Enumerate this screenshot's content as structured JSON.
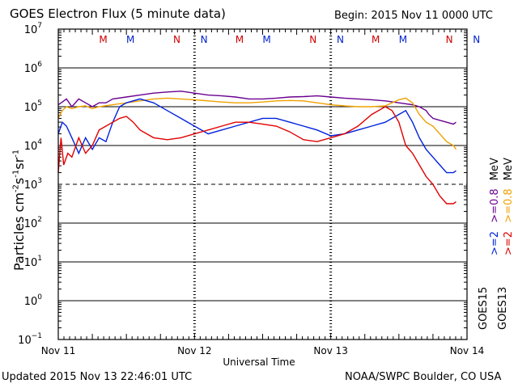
{
  "header": {
    "title": "GOES Electron Flux (5 minute data)",
    "begin": "Begin: 2015 Nov 11 0000 UTC"
  },
  "footer": {
    "updated": "Updated 2015 Nov 13 22:46:01 UTC",
    "credit": "NOAA/SWPC Boulder, CO USA"
  },
  "colors": {
    "goes13_2mev": "#e00000",
    "goes15_2mev": "#0022dd",
    "goes13_08mev": "#f0a000",
    "goes15_08mev": "#6a0090",
    "marker_m": "#cc0000",
    "marker_n_red": "#cc0000",
    "marker_n_blue": "#0022cc"
  },
  "chart_data": {
    "type": "line",
    "title": "GOES Electron Flux (5 minute data)",
    "xlabel": "Universal Time",
    "ylabel": "Particles cm-2 s-1 sr-1",
    "yscale": "log",
    "ylim_exp": [
      -1,
      7
    ],
    "xlim_days": [
      0,
      3
    ],
    "x_ticks": [
      "Nov 11",
      "Nov 12",
      "Nov 13",
      "Nov 14"
    ],
    "y_tick_base": "10",
    "y_tick_exponents": [
      "7",
      "6",
      "5",
      "4",
      "3",
      "2",
      "1",
      "0",
      "−1"
    ],
    "threshold_exp": 3,
    "legend_labels": {
      "goes13_2mev": ">=2",
      "goes13_08mev": ">=0.8",
      "goes13_mev": "MeV",
      "goes15_2mev": ">=2",
      "goes15_08mev": ">=0.8",
      "goes15_mev": "MeV",
      "goes15": "GOES15",
      "goes13": "GOES13"
    },
    "markers": [
      {
        "label": "M",
        "day": 0.33,
        "color": "#cc0000"
      },
      {
        "label": "M",
        "day": 0.53,
        "color": "#0022cc"
      },
      {
        "label": "N",
        "day": 0.87,
        "color": "#cc0000"
      },
      {
        "label": "N",
        "day": 1.07,
        "color": "#0022cc"
      },
      {
        "label": "M",
        "day": 1.33,
        "color": "#cc0000"
      },
      {
        "label": "M",
        "day": 1.53,
        "color": "#0022cc"
      },
      {
        "label": "N",
        "day": 1.87,
        "color": "#cc0000"
      },
      {
        "label": "N",
        "day": 2.07,
        "color": "#0022cc"
      },
      {
        "label": "M",
        "day": 2.33,
        "color": "#cc0000"
      },
      {
        "label": "M",
        "day": 2.53,
        "color": "#0022cc"
      },
      {
        "label": "N",
        "day": 2.87,
        "color": "#cc0000"
      },
      {
        "label": "N",
        "day": 3.07,
        "color": "#0022cc"
      }
    ],
    "series": [
      {
        "name": "GOES15 >=0.8 MeV",
        "color": "#6a0090",
        "x": [
          0.0,
          0.03,
          0.06,
          0.1,
          0.15,
          0.2,
          0.25,
          0.3,
          0.35,
          0.4,
          0.5,
          0.6,
          0.7,
          0.8,
          0.9,
          1.0,
          1.1,
          1.2,
          1.3,
          1.4,
          1.5,
          1.6,
          1.7,
          1.8,
          1.9,
          2.0,
          2.1,
          2.2,
          2.3,
          2.4,
          2.5,
          2.6,
          2.65,
          2.7,
          2.72,
          2.75,
          2.8,
          2.85,
          2.9,
          2.92
        ],
        "y": [
          5.05,
          5.12,
          5.2,
          5.0,
          5.2,
          5.1,
          5.0,
          5.1,
          5.1,
          5.2,
          5.25,
          5.3,
          5.35,
          5.38,
          5.4,
          5.35,
          5.3,
          5.28,
          5.25,
          5.2,
          5.2,
          5.22,
          5.25,
          5.26,
          5.28,
          5.25,
          5.22,
          5.2,
          5.18,
          5.15,
          5.1,
          5.05,
          5.0,
          4.9,
          4.8,
          4.7,
          4.65,
          4.6,
          4.55,
          4.6
        ]
      },
      {
        "name": "GOES13 >=0.8 MeV",
        "color": "#f0a000",
        "x": [
          0.0,
          0.03,
          0.06,
          0.1,
          0.15,
          0.2,
          0.25,
          0.3,
          0.4,
          0.5,
          0.6,
          0.7,
          0.8,
          0.9,
          1.0,
          1.1,
          1.2,
          1.3,
          1.4,
          1.5,
          1.6,
          1.7,
          1.8,
          1.9,
          2.0,
          2.1,
          2.2,
          2.3,
          2.4,
          2.45,
          2.5,
          2.55,
          2.6,
          2.65,
          2.7,
          2.75,
          2.8,
          2.85,
          2.9,
          2.92
        ],
        "y": [
          4.7,
          4.9,
          5.0,
          4.95,
          5.0,
          5.02,
          4.95,
          5.0,
          5.05,
          5.1,
          5.15,
          5.2,
          5.22,
          5.2,
          5.18,
          5.15,
          5.12,
          5.1,
          5.1,
          5.12,
          5.15,
          5.16,
          5.15,
          5.1,
          5.05,
          5.02,
          5.0,
          5.0,
          5.02,
          5.1,
          5.18,
          5.22,
          5.1,
          4.8,
          4.6,
          4.5,
          4.3,
          4.1,
          4.0,
          3.9
        ]
      },
      {
        "name": "GOES15 >=2 MeV",
        "color": "#0022dd",
        "x": [
          0.0,
          0.03,
          0.06,
          0.1,
          0.15,
          0.2,
          0.25,
          0.3,
          0.35,
          0.4,
          0.45,
          0.5,
          0.6,
          0.7,
          0.8,
          0.9,
          1.0,
          1.1,
          1.2,
          1.3,
          1.4,
          1.5,
          1.6,
          1.7,
          1.8,
          1.9,
          2.0,
          2.1,
          2.2,
          2.3,
          2.4,
          2.5,
          2.55,
          2.6,
          2.65,
          2.7,
          2.75,
          2.8,
          2.85,
          2.9,
          2.92
        ],
        "y": [
          4.3,
          4.6,
          4.5,
          4.2,
          3.8,
          4.2,
          3.9,
          4.2,
          4.1,
          4.6,
          5.0,
          5.1,
          5.2,
          5.1,
          4.9,
          4.7,
          4.5,
          4.3,
          4.4,
          4.5,
          4.6,
          4.7,
          4.7,
          4.6,
          4.5,
          4.4,
          4.25,
          4.3,
          4.4,
          4.5,
          4.6,
          4.8,
          4.9,
          4.6,
          4.2,
          3.9,
          3.7,
          3.5,
          3.3,
          3.3,
          3.35
        ]
      },
      {
        "name": "GOES13 >=2 MeV",
        "color": "#e00000",
        "x": [
          0.0,
          0.02,
          0.04,
          0.07,
          0.1,
          0.15,
          0.2,
          0.25,
          0.3,
          0.35,
          0.4,
          0.45,
          0.5,
          0.55,
          0.6,
          0.7,
          0.8,
          0.9,
          1.0,
          1.1,
          1.2,
          1.3,
          1.4,
          1.5,
          1.6,
          1.7,
          1.8,
          1.9,
          2.0,
          2.1,
          2.2,
          2.3,
          2.4,
          2.45,
          2.5,
          2.55,
          2.6,
          2.65,
          2.7,
          2.75,
          2.8,
          2.85,
          2.9,
          2.92
        ],
        "y": [
          3.3,
          4.2,
          3.5,
          3.8,
          3.7,
          4.2,
          3.8,
          4.0,
          4.4,
          4.5,
          4.6,
          4.7,
          4.75,
          4.6,
          4.4,
          4.2,
          4.15,
          4.2,
          4.3,
          4.4,
          4.5,
          4.6,
          4.6,
          4.55,
          4.5,
          4.35,
          4.15,
          4.1,
          4.2,
          4.3,
          4.5,
          4.8,
          5.0,
          4.9,
          4.6,
          4.0,
          3.8,
          3.5,
          3.2,
          3.0,
          2.7,
          2.5,
          2.5,
          2.55
        ]
      }
    ]
  }
}
